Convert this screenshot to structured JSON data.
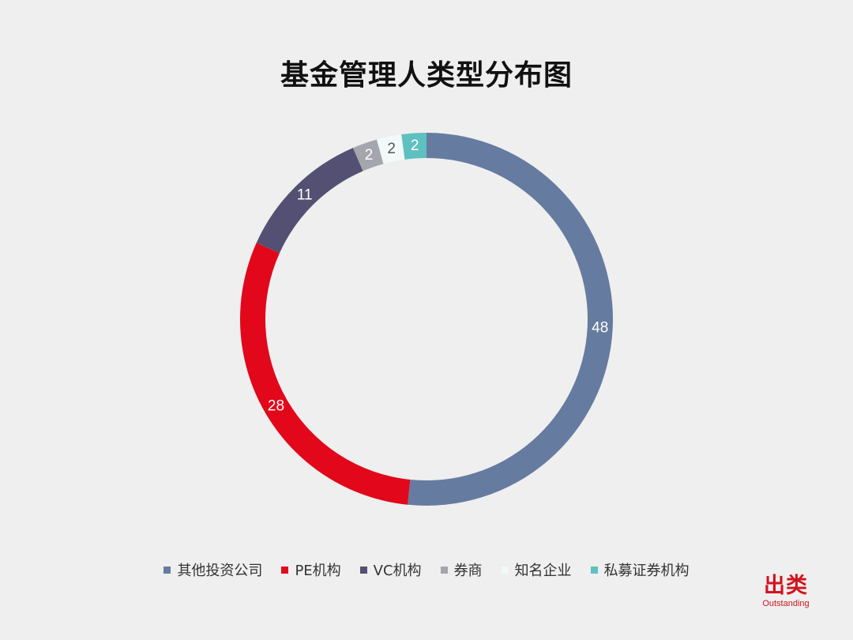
{
  "chart_data": {
    "type": "pie",
    "subtype": "donut",
    "title": "基金管理人类型分布图",
    "legend_position": "bottom",
    "slices": [
      {
        "label": "其他投资公司",
        "value": 48,
        "color": "#667ba0",
        "label_color": "#ffffff"
      },
      {
        "label": "PE机构",
        "value": 28,
        "color": "#e2071a",
        "label_color": "#ffffff"
      },
      {
        "label": "VC机构",
        "value": 11,
        "color": "#545073",
        "label_color": "#ffffff"
      },
      {
        "label": "券商",
        "value": 2,
        "color": "#a5a5ae",
        "label_color": "#ffffff"
      },
      {
        "label": "知名企业",
        "value": 2,
        "color": "#f2f9f8",
        "label_color": "#555555"
      },
      {
        "label": "私募证券机构",
        "value": 2,
        "color": "#5fc0c0",
        "label_color": "#ffffff"
      }
    ]
  },
  "watermark": {
    "text": "出类",
    "subtext": "Outstanding"
  }
}
